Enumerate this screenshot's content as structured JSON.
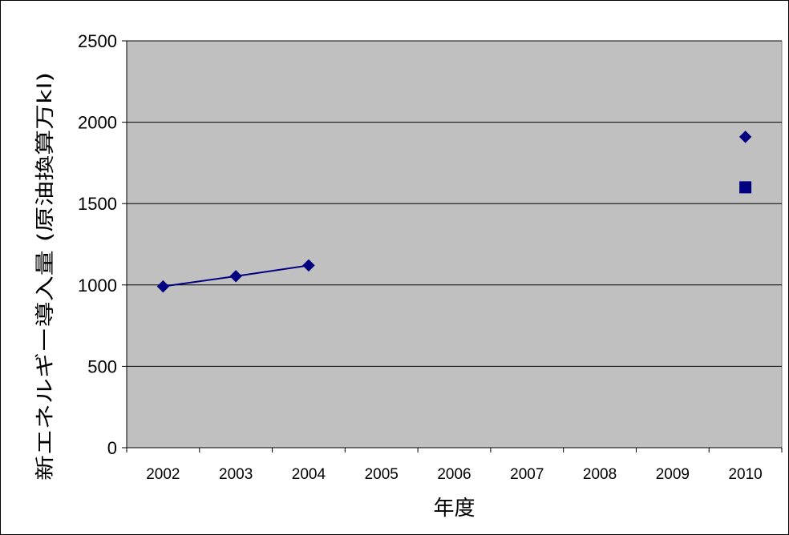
{
  "chart_data": {
    "type": "line",
    "title": "",
    "xlabel": "年度",
    "ylabel": "新エネルギー導入量 (原油換算万kl)",
    "categories": [
      "2002",
      "2003",
      "2004",
      "2005",
      "2006",
      "2007",
      "2008",
      "2009",
      "2010"
    ],
    "y_ticks": [
      "0",
      "500",
      "1000",
      "1500",
      "2000",
      "2500"
    ],
    "ylim": [
      0,
      2500
    ],
    "grid": "horizontal",
    "legend": "none",
    "series": [
      {
        "marker": "diamond",
        "connected": true,
        "color": "#000080",
        "points": [
          {
            "x": "2002",
            "y": 991
          },
          {
            "x": "2003",
            "y": 1054
          },
          {
            "x": "2004",
            "y": 1120
          }
        ]
      },
      {
        "marker": "diamond",
        "connected": false,
        "color": "#000080",
        "points": [
          {
            "x": "2010",
            "y": 1910
          }
        ]
      },
      {
        "marker": "square",
        "connected": false,
        "color": "#000080",
        "points": [
          {
            "x": "2010",
            "y": 1600
          }
        ]
      }
    ],
    "colors": {
      "plot_background": "#c0c0c0",
      "gridline": "#000000"
    }
  }
}
